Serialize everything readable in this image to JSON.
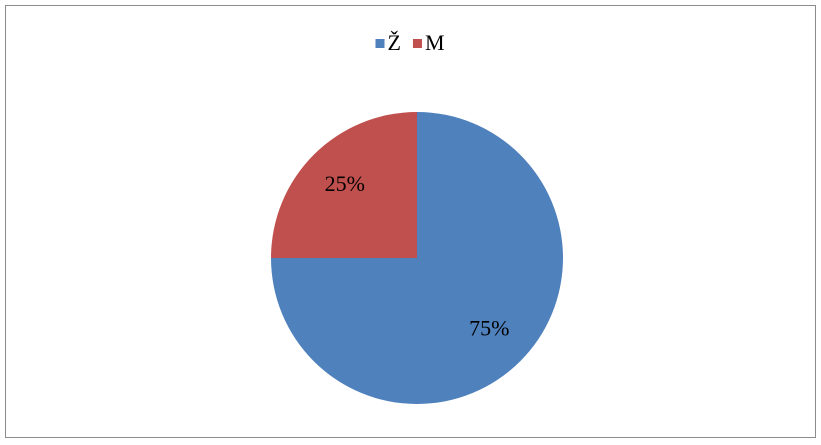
{
  "chart_data": {
    "type": "pie",
    "categories": [
      "Ž",
      "M"
    ],
    "values": [
      75,
      25
    ],
    "value_labels": [
      "75%",
      "25%"
    ],
    "colors": [
      "#4f81bd",
      "#c0504d"
    ],
    "legend": "top"
  }
}
